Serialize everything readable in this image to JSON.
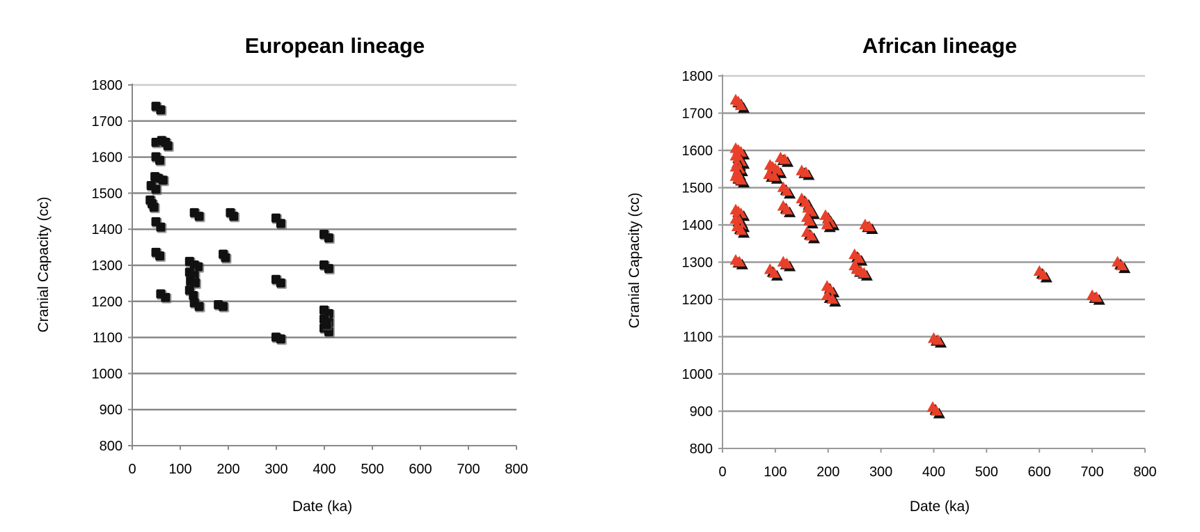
{
  "chart_data": [
    {
      "type": "scatter",
      "title": "European lineage",
      "xlabel": "Date (ka)",
      "ylabel": "Cranial Capacity (cc)",
      "xlim": [
        0,
        800
      ],
      "ylim": [
        800,
        1800
      ],
      "xticks": [
        0,
        100,
        200,
        300,
        400,
        500,
        600,
        700,
        800
      ],
      "yticks": [
        800,
        900,
        1000,
        1100,
        1200,
        1300,
        1400,
        1500,
        1600,
        1700,
        1800
      ],
      "grid": "horizontal",
      "legend": "none",
      "marker": "square",
      "colors": {
        "marker": "#111111",
        "shadow": "#555555",
        "grid": "#888888",
        "axis": "#888888"
      },
      "points": [
        {
          "x": 50,
          "y": 1740
        },
        {
          "x": 60,
          "y": 1730
        },
        {
          "x": 50,
          "y": 1640
        },
        {
          "x": 62,
          "y": 1645
        },
        {
          "x": 70,
          "y": 1640
        },
        {
          "x": 75,
          "y": 1630
        },
        {
          "x": 50,
          "y": 1600
        },
        {
          "x": 58,
          "y": 1590
        },
        {
          "x": 48,
          "y": 1545
        },
        {
          "x": 55,
          "y": 1540
        },
        {
          "x": 65,
          "y": 1535
        },
        {
          "x": 40,
          "y": 1520
        },
        {
          "x": 50,
          "y": 1510
        },
        {
          "x": 38,
          "y": 1480
        },
        {
          "x": 42,
          "y": 1470
        },
        {
          "x": 46,
          "y": 1460
        },
        {
          "x": 50,
          "y": 1420
        },
        {
          "x": 60,
          "y": 1405
        },
        {
          "x": 50,
          "y": 1335
        },
        {
          "x": 58,
          "y": 1325
        },
        {
          "x": 60,
          "y": 1220
        },
        {
          "x": 70,
          "y": 1210
        },
        {
          "x": 130,
          "y": 1445
        },
        {
          "x": 140,
          "y": 1435
        },
        {
          "x": 120,
          "y": 1310
        },
        {
          "x": 130,
          "y": 1300
        },
        {
          "x": 138,
          "y": 1295
        },
        {
          "x": 120,
          "y": 1280
        },
        {
          "x": 130,
          "y": 1270
        },
        {
          "x": 122,
          "y": 1255
        },
        {
          "x": 132,
          "y": 1250
        },
        {
          "x": 120,
          "y": 1230
        },
        {
          "x": 128,
          "y": 1215
        },
        {
          "x": 130,
          "y": 1195
        },
        {
          "x": 140,
          "y": 1185
        },
        {
          "x": 180,
          "y": 1190
        },
        {
          "x": 190,
          "y": 1185
        },
        {
          "x": 190,
          "y": 1330
        },
        {
          "x": 195,
          "y": 1320
        },
        {
          "x": 205,
          "y": 1445
        },
        {
          "x": 212,
          "y": 1435
        },
        {
          "x": 300,
          "y": 1430
        },
        {
          "x": 310,
          "y": 1415
        },
        {
          "x": 300,
          "y": 1260
        },
        {
          "x": 310,
          "y": 1250
        },
        {
          "x": 300,
          "y": 1100
        },
        {
          "x": 310,
          "y": 1095
        },
        {
          "x": 400,
          "y": 1385
        },
        {
          "x": 410,
          "y": 1375
        },
        {
          "x": 400,
          "y": 1300
        },
        {
          "x": 410,
          "y": 1290
        },
        {
          "x": 400,
          "y": 1175
        },
        {
          "x": 410,
          "y": 1165
        },
        {
          "x": 400,
          "y": 1150
        },
        {
          "x": 410,
          "y": 1140
        },
        {
          "x": 400,
          "y": 1125
        },
        {
          "x": 410,
          "y": 1115
        },
        {
          "x": 405,
          "y": 1135
        }
      ]
    },
    {
      "type": "scatter",
      "title": "African lineage",
      "xlabel": "Date (ka)",
      "ylabel": "Cranial Capacity (cc)",
      "xlim": [
        0,
        800
      ],
      "ylim": [
        800,
        1800
      ],
      "xticks": [
        0,
        100,
        200,
        300,
        400,
        500,
        600,
        700,
        800
      ],
      "yticks": [
        800,
        900,
        1000,
        1100,
        1200,
        1300,
        1400,
        1500,
        1600,
        1700,
        1800
      ],
      "grid": "horizontal",
      "legend": "none",
      "marker": "triangle",
      "colors": {
        "marker": "#e8402a",
        "shadow": "#111111",
        "grid": "#999999",
        "axis": "#999999"
      },
      "points": [
        {
          "x": 25,
          "y": 1735
        },
        {
          "x": 30,
          "y": 1730
        },
        {
          "x": 35,
          "y": 1720
        },
        {
          "x": 25,
          "y": 1605
        },
        {
          "x": 30,
          "y": 1600
        },
        {
          "x": 35,
          "y": 1595
        },
        {
          "x": 25,
          "y": 1585
        },
        {
          "x": 30,
          "y": 1580
        },
        {
          "x": 35,
          "y": 1570
        },
        {
          "x": 28,
          "y": 1565
        },
        {
          "x": 25,
          "y": 1555
        },
        {
          "x": 32,
          "y": 1550
        },
        {
          "x": 28,
          "y": 1540
        },
        {
          "x": 25,
          "y": 1530
        },
        {
          "x": 30,
          "y": 1525
        },
        {
          "x": 35,
          "y": 1520
        },
        {
          "x": 25,
          "y": 1440
        },
        {
          "x": 30,
          "y": 1435
        },
        {
          "x": 35,
          "y": 1430
        },
        {
          "x": 28,
          "y": 1420
        },
        {
          "x": 25,
          "y": 1415
        },
        {
          "x": 32,
          "y": 1410
        },
        {
          "x": 35,
          "y": 1400
        },
        {
          "x": 28,
          "y": 1395
        },
        {
          "x": 35,
          "y": 1385
        },
        {
          "x": 25,
          "y": 1305
        },
        {
          "x": 32,
          "y": 1300
        },
        {
          "x": 90,
          "y": 1560
        },
        {
          "x": 95,
          "y": 1555
        },
        {
          "x": 100,
          "y": 1550
        },
        {
          "x": 105,
          "y": 1545
        },
        {
          "x": 88,
          "y": 1535
        },
        {
          "x": 98,
          "y": 1530
        },
        {
          "x": 110,
          "y": 1580
        },
        {
          "x": 118,
          "y": 1575
        },
        {
          "x": 150,
          "y": 1545
        },
        {
          "x": 158,
          "y": 1540
        },
        {
          "x": 115,
          "y": 1500
        },
        {
          "x": 122,
          "y": 1490
        },
        {
          "x": 115,
          "y": 1450
        },
        {
          "x": 122,
          "y": 1440
        },
        {
          "x": 150,
          "y": 1470
        },
        {
          "x": 158,
          "y": 1460
        },
        {
          "x": 162,
          "y": 1445
        },
        {
          "x": 168,
          "y": 1435
        },
        {
          "x": 160,
          "y": 1420
        },
        {
          "x": 165,
          "y": 1410
        },
        {
          "x": 160,
          "y": 1380
        },
        {
          "x": 168,
          "y": 1370
        },
        {
          "x": 195,
          "y": 1425
        },
        {
          "x": 200,
          "y": 1415
        },
        {
          "x": 205,
          "y": 1405
        },
        {
          "x": 198,
          "y": 1400
        },
        {
          "x": 270,
          "y": 1400
        },
        {
          "x": 278,
          "y": 1395
        },
        {
          "x": 250,
          "y": 1320
        },
        {
          "x": 258,
          "y": 1310
        },
        {
          "x": 250,
          "y": 1290
        },
        {
          "x": 255,
          "y": 1280
        },
        {
          "x": 262,
          "y": 1275
        },
        {
          "x": 268,
          "y": 1270
        },
        {
          "x": 115,
          "y": 1300
        },
        {
          "x": 122,
          "y": 1295
        },
        {
          "x": 90,
          "y": 1280
        },
        {
          "x": 98,
          "y": 1270
        },
        {
          "x": 198,
          "y": 1235
        },
        {
          "x": 205,
          "y": 1225
        },
        {
          "x": 198,
          "y": 1210
        },
        {
          "x": 208,
          "y": 1200
        },
        {
          "x": 400,
          "y": 1095
        },
        {
          "x": 408,
          "y": 1090
        },
        {
          "x": 398,
          "y": 910
        },
        {
          "x": 405,
          "y": 900
        },
        {
          "x": 600,
          "y": 1275
        },
        {
          "x": 608,
          "y": 1265
        },
        {
          "x": 700,
          "y": 1210
        },
        {
          "x": 708,
          "y": 1205
        },
        {
          "x": 748,
          "y": 1300
        },
        {
          "x": 756,
          "y": 1290
        }
      ]
    }
  ]
}
